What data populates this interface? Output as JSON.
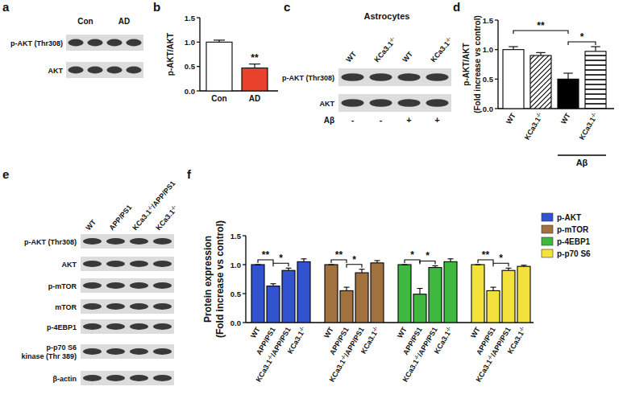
{
  "chart_data": [
    {
      "type": "bar",
      "panel": "b",
      "categories": [
        "Con",
        "AD"
      ],
      "values": [
        1.0,
        0.47
      ],
      "errors": [
        0.04,
        0.08
      ],
      "colors": [
        "#ffffff",
        "#e8412c"
      ],
      "y_label": [
        "p-AKT/AKT"
      ],
      "ylim": [
        0,
        1.5
      ],
      "yticks": [
        {
          "value": 0,
          "label": "0.0"
        },
        {
          "value": 0.5,
          "label": "0.5"
        },
        {
          "value": 1,
          "label": "1.0"
        },
        {
          "value": 1.5,
          "label": "1.5"
        }
      ],
      "annotations": [
        {
          "text": "**",
          "at": 1
        }
      ]
    },
    {
      "type": "bar",
      "panel": "d",
      "categories": [
        "WT",
        "KCa3.1-/-",
        "WT",
        "KCa3.1-/-"
      ],
      "values": [
        1.0,
        0.9,
        0.5,
        0.97
      ],
      "errors": [
        0.05,
        0.05,
        0.1,
        0.08
      ],
      "colors": [
        "#ffffff",
        "#ffffff",
        "#000000",
        "#ffffff"
      ],
      "groups": [
        {
          "label": "Aβ",
          "from": 2,
          "to": 3
        }
      ],
      "y_label": [
        "p-AKT/AKT",
        "(Fold increase vs control)"
      ],
      "ylim": [
        0,
        1.5
      ],
      "yticks": [
        {
          "value": 0,
          "label": "0.0"
        },
        {
          "value": 0.5,
          "label": "0.5"
        },
        {
          "value": 1,
          "label": "1.0"
        },
        {
          "value": 1.5,
          "label": "1.5"
        }
      ],
      "annotations": [
        {
          "text": "**",
          "from": 0,
          "to": 2
        },
        {
          "text": "*",
          "from": 2,
          "to": 3
        }
      ]
    },
    {
      "type": "bar",
      "panel": "f",
      "categories": [
        "WT",
        "APP/PS1",
        "KCa3.1-/-/APP/PS1",
        "KCa3.1-/-"
      ],
      "series": [
        {
          "name": "p-AKT",
          "color": "#3253d0",
          "values": [
            1.0,
            0.63,
            0.9,
            1.05
          ],
          "errors": [
            0,
            0.04,
            0.04,
            0.05
          ]
        },
        {
          "name": "p-mTOR",
          "color": "#a2723e",
          "values": [
            1.0,
            0.55,
            0.86,
            1.03
          ],
          "errors": [
            0,
            0.06,
            0.06,
            0.04
          ]
        },
        {
          "name": "p-4EBP1",
          "color": "#3fb83f",
          "values": [
            1.0,
            0.49,
            0.95,
            1.05
          ],
          "errors": [
            0,
            0.1,
            0.03,
            0.05
          ]
        },
        {
          "name": "p-p70 S6",
          "color": "#f4e23c",
          "values": [
            1.0,
            0.55,
            0.9,
            0.97
          ],
          "errors": [
            0,
            0.06,
            0.04,
            0.02
          ]
        }
      ],
      "legend": "top-right",
      "y_label": [
        "Protein expression",
        "(Fold increase vs control)"
      ],
      "ylim": [
        0,
        1.5
      ],
      "yticks": [
        {
          "value": 0,
          "label": "0.0"
        },
        {
          "value": 0.5,
          "label": "0.5"
        },
        {
          "value": 1,
          "label": "1.0"
        },
        {
          "value": 1.5,
          "label": "1.5"
        }
      ],
      "annotations": [
        {
          "text": "**",
          "series": 0,
          "from": 0,
          "to": 1
        },
        {
          "text": "*",
          "series": 0,
          "from": 1,
          "to": 2
        },
        {
          "text": "**",
          "series": 1,
          "from": 0,
          "to": 1
        },
        {
          "text": "*",
          "series": 1,
          "from": 1,
          "to": 2
        },
        {
          "text": "*",
          "series": 2,
          "from": 0,
          "to": 1
        },
        {
          "text": "*",
          "series": 2,
          "from": 1,
          "to": 2
        },
        {
          "text": "**",
          "series": 3,
          "from": 0,
          "to": 1
        },
        {
          "text": "*",
          "series": 3,
          "from": 1,
          "to": 2
        }
      ]
    }
  ],
  "blots": [
    {
      "panel": "a",
      "columns": [
        {
          "label": "Con",
          "lanes": 2
        },
        {
          "label": "AD",
          "lanes": 2
        }
      ],
      "rows": [
        [
          "p-AKT (Thr308)"
        ],
        [
          "AKT"
        ]
      ]
    },
    {
      "panel": "c",
      "title": "Astrocytes",
      "columns": [
        {
          "label": "WT",
          "lanes": 1
        },
        {
          "label": "KCa3.1-/-",
          "lanes": 1
        },
        {
          "label": "WT",
          "lanes": 1
        },
        {
          "label": "KCa3.1-/-",
          "lanes": 1
        }
      ],
      "rows": [
        [
          "p-AKT (Thr308)"
        ],
        [
          "AKT"
        ]
      ],
      "treatment": {
        "label": "Aβ",
        "values": [
          "-",
          "-",
          "+",
          "+"
        ]
      }
    },
    {
      "panel": "e",
      "columns": [
        {
          "label": "WT",
          "lanes": 1
        },
        {
          "label": "APP/PS1",
          "lanes": 1
        },
        {
          "label": "KCa3.1-/-/APP/PS1",
          "lanes": 1
        },
        {
          "label": "KCa3.1-/-",
          "lanes": 1
        }
      ],
      "rows": [
        [
          "p-AKT (Thr308)"
        ],
        [
          "AKT"
        ],
        [
          "p-mTOR"
        ],
        [
          "mTOR"
        ],
        [
          "p-4EBP1"
        ],
        [
          "p-p70 S6",
          "kinase (Thr 389)"
        ],
        [
          "β-actin"
        ]
      ]
    }
  ]
}
